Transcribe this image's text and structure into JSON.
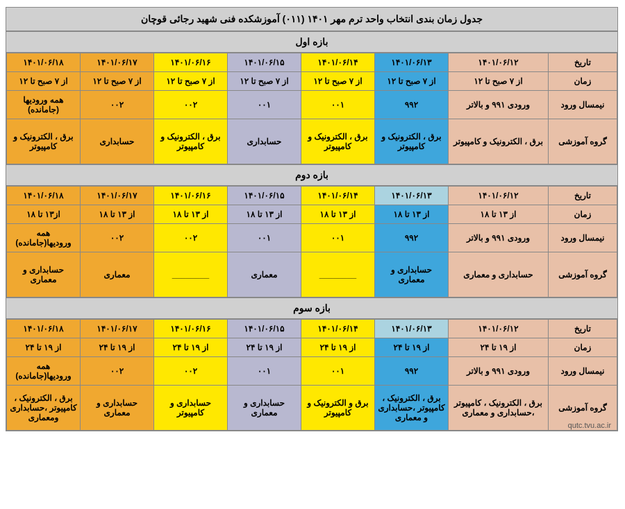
{
  "mainTitle": "جدول زمان بندی  انتخاب واحد ترم مهر ۱۴۰۱ (۰۱۱) آموزشکده فنی شهید رجائی قوچان",
  "sections": [
    {
      "title": "بازه اول",
      "rows": [
        {
          "label": "تاریخ",
          "cells": [
            "۱۴۰۱/۰۶/۱۲",
            "۱۴۰۱/۰۶/۱۳",
            "۱۴۰۱/۰۶/۱۴",
            "۱۴۰۱/۰۶/۱۵",
            "۱۴۰۱/۰۶/۱۶",
            "۱۴۰۱/۰۶/۱۷",
            "۱۴۰۱/۰۶/۱۸"
          ],
          "colors": [
            "c12",
            "c13-2",
            "c14",
            "c15",
            "c16",
            "c17",
            "c18"
          ]
        },
        {
          "label": "زمان",
          "cells": [
            "از ۷ صبح تا ۱۲",
            "از ۷ صبح تا ۱۲",
            "از ۷ صبح تا ۱۲",
            "از ۷ صبح تا ۱۲",
            "از ۷ صبح تا ۱۲",
            "از ۷ صبح تا ۱۲",
            "از ۷ صبح تا ۱۲"
          ],
          "colors": [
            "c12",
            "c13-2",
            "c14",
            "c15",
            "c16",
            "c17",
            "c18"
          ]
        },
        {
          "label": "نیمسال ورود",
          "cells": [
            "ورودی ۹۹۱ و بالاتر",
            "۹۹۲",
            "۰۰۱",
            "۰۰۱",
            "۰۰۲",
            "۰۰۲",
            "همه ورودیها (جامانده)"
          ],
          "colors": [
            "c12",
            "c13-2",
            "c14",
            "c15",
            "c16",
            "c17",
            "c18"
          ]
        },
        {
          "label": "گروه آموزشی",
          "tall": true,
          "cells": [
            "برق ، الکترونیک و کامپیوتر",
            "برق ، الکترونیک و کامپیوتر",
            "برق ، الکترونیک و کامپیوتر",
            "حسابداری",
            "برق ، الکترونیک و کامپیوتر",
            "حسابداری",
            "برق ، الکترونیک و کامپیوتر"
          ],
          "colors": [
            "c12",
            "c13-2",
            "c14",
            "c15",
            "c16",
            "c17",
            "c18"
          ]
        }
      ]
    },
    {
      "title": "بازه دوم",
      "rows": [
        {
          "label": "تاریخ",
          "cells": [
            "۱۴۰۱/۰۶/۱۲",
            "۱۴۰۱/۰۶/۱۳",
            "۱۴۰۱/۰۶/۱۴",
            "۱۴۰۱/۰۶/۱۵",
            "۱۴۰۱/۰۶/۱۶",
            "۱۴۰۱/۰۶/۱۷",
            "۱۴۰۱/۰۶/۱۸"
          ],
          "colors": [
            "c12",
            "c13-1",
            "c14",
            "c15",
            "c16",
            "c17",
            "c18"
          ]
        },
        {
          "label": "زمان",
          "cells": [
            "از ۱۳ تا ۱۸",
            "از ۱۳ تا ۱۸",
            "از ۱۳ تا ۱۸",
            "از ۱۳ تا ۱۸",
            "از ۱۳ تا ۱۸",
            "از ۱۳ تا ۱۸",
            "از۱۳ تا ۱۸"
          ],
          "colors": [
            "c12",
            "c13-2",
            "c14",
            "c15",
            "c16",
            "c17",
            "c18"
          ]
        },
        {
          "label": "نیمسال ورود",
          "cells": [
            "ورودی ۹۹۱ و بالاتر",
            "۹۹۲",
            "۰۰۱",
            "۰۰۱",
            "۰۰۲",
            "۰۰۲",
            "همه ورودیها(جامانده)"
          ],
          "colors": [
            "c12",
            "c13-2",
            "c14",
            "c15",
            "c16",
            "c17",
            "c18"
          ]
        },
        {
          "label": "گروه آموزشی",
          "tall": true,
          "cells": [
            "حسابداری و معماری",
            "حسابداری و معماری",
            "________",
            "معماری",
            "________",
            "معماری",
            "حسابداری و معماری"
          ],
          "colors": [
            "c12",
            "c13-2",
            "c14",
            "c15",
            "c16",
            "c17",
            "c18"
          ]
        }
      ]
    },
    {
      "title": "بازه سوم",
      "rows": [
        {
          "label": "تاریخ",
          "cells": [
            "۱۴۰۱/۰۶/۱۲",
            "۱۴۰۱/۰۶/۱۳",
            "۱۴۰۱/۰۶/۱۴",
            "۱۴۰۱/۰۶/۱۵",
            "۱۴۰۱/۰۶/۱۶",
            "۱۴۰۱/۰۶/۱۷",
            "۱۴۰۱/۰۶/۱۸"
          ],
          "colors": [
            "c12",
            "c13-1",
            "c14",
            "c15",
            "c16",
            "c17",
            "c18"
          ]
        },
        {
          "label": "زمان",
          "cells": [
            "از ۱۹ تا ۲۴",
            "از ۱۹ تا ۲۴",
            "از ۱۹ تا ۲۴",
            "از ۱۹ تا ۲۴",
            "از ۱۹ تا ۲۴",
            "از ۱۹ تا ۲۴",
            "از ۱۹ تا ۲۴"
          ],
          "colors": [
            "c12",
            "c13-2",
            "c14",
            "c15",
            "c16",
            "c17",
            "c18"
          ]
        },
        {
          "label": "نیمسال ورود",
          "cells": [
            "ورودی ۹۹۱ و بالاتر",
            "۹۹۲",
            "۰۰۱",
            "۰۰۱",
            "۰۰۲",
            "۰۰۲",
            "همه ورودیها(جامانده)"
          ],
          "colors": [
            "c12",
            "c13-2",
            "c14",
            "c15",
            "c16",
            "c17",
            "c18"
          ]
        },
        {
          "label": "گروه آموزشی",
          "tall": true,
          "cells": [
            "برق ، الکترونیک ، کامپیوتر ،حسابداری و معماری",
            "برق ، الکترونیک ، کامپیوتر ،حسابداری و معماری",
            "برق و الکترونیک و کامپیوتر",
            "حسابداری و معماری",
            "حسابداری و کامپیوتر",
            "حسابداری و معماری",
            "برق ، الکترونیک ، کامپیوتر ،حسابداری ومعماری"
          ],
          "colors": [
            "c12",
            "c13-2",
            "c14",
            "c15",
            "c16",
            "c17",
            "c18"
          ]
        }
      ]
    }
  ],
  "watermark": "qutc.tvu.ac.ir"
}
